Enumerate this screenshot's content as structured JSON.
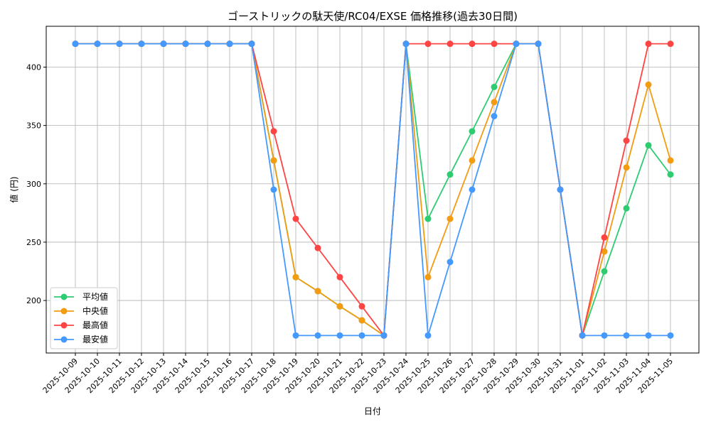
{
  "chart_data": {
    "type": "line",
    "title": "ゴーストリックの駄天使/RC04/EXSE 価格推移(過去30日間)",
    "xlabel": "日付",
    "ylabel": "値 (円)",
    "ylim": [
      155,
      435
    ],
    "yticks": [
      200,
      250,
      300,
      350,
      400
    ],
    "grid": true,
    "legend_position": "lower-left",
    "categories": [
      "2025-10-09",
      "2025-10-10",
      "2025-10-11",
      "2025-10-12",
      "2025-10-13",
      "2025-10-14",
      "2025-10-15",
      "2025-10-16",
      "2025-10-17",
      "2025-10-18",
      "2025-10-19",
      "2025-10-20",
      "2025-10-21",
      "2025-10-22",
      "2025-10-23",
      "2025-10-24",
      "2025-10-25",
      "2025-10-26",
      "2025-10-27",
      "2025-10-28",
      "2025-10-29",
      "2025-10-30",
      "2025-10-31",
      "2025-11-01",
      "2025-11-02",
      "2025-11-03",
      "2025-11-04",
      "2025-11-05"
    ],
    "series": [
      {
        "name": "平均値",
        "color": "#2ecc71",
        "values": [
          420,
          420,
          420,
          420,
          420,
          420,
          420,
          420,
          420,
          320,
          220,
          208,
          195,
          183,
          170,
          420,
          270,
          308,
          345,
          383,
          420,
          420,
          295,
          170,
          225,
          279,
          333,
          308
        ]
      },
      {
        "name": "中央値",
        "color": "#f39c12",
        "values": [
          420,
          420,
          420,
          420,
          420,
          420,
          420,
          420,
          420,
          320,
          220,
          208,
          195,
          183,
          170,
          420,
          220,
          270,
          320,
          370,
          420,
          420,
          295,
          170,
          242,
          314,
          385,
          320
        ]
      },
      {
        "name": "最高値",
        "color": "#ff4444",
        "values": [
          420,
          420,
          420,
          420,
          420,
          420,
          420,
          420,
          420,
          345,
          270,
          245,
          220,
          195,
          170,
          420,
          420,
          420,
          420,
          420,
          420,
          420,
          295,
          170,
          254,
          337,
          420,
          420
        ]
      },
      {
        "name": "最安値",
        "color": "#4499ff",
        "values": [
          420,
          420,
          420,
          420,
          420,
          420,
          420,
          420,
          420,
          295,
          170,
          170,
          170,
          170,
          170,
          420,
          170,
          233,
          295,
          358,
          420,
          420,
          295,
          170,
          170,
          170,
          170,
          170
        ]
      }
    ]
  }
}
